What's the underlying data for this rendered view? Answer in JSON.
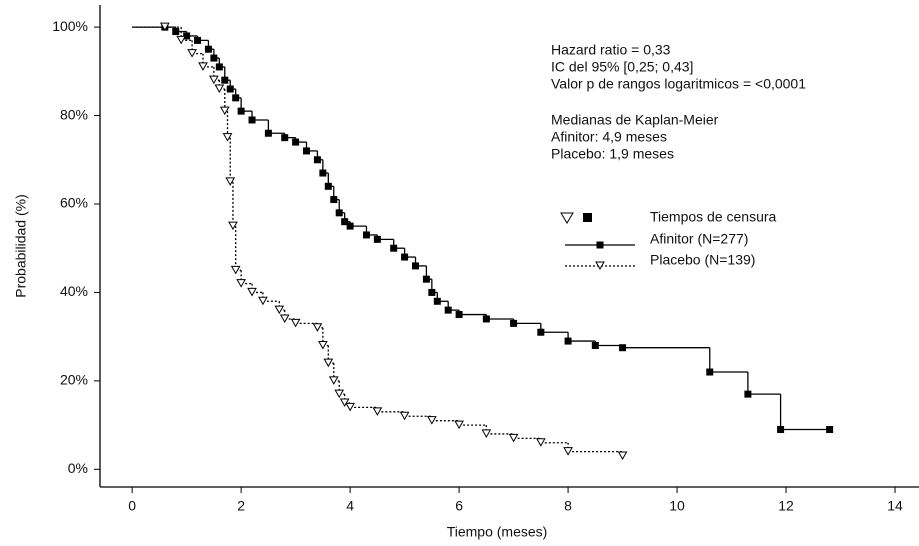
{
  "chart_data": {
    "type": "line",
    "step": true,
    "x_label": "Tiempo (meses)",
    "y_label": "Probabilidad (%)",
    "xlim": [
      -0.59,
      14.44
    ],
    "ylim": [
      -4,
      105
    ],
    "xticks": [
      0,
      2,
      4,
      6,
      8,
      10,
      12,
      14
    ],
    "yticks": [
      {
        "value": 0,
        "label": "0%"
      },
      {
        "value": 20,
        "label": "20%"
      },
      {
        "value": 40,
        "label": "40%"
      },
      {
        "value": 60,
        "label": "60%"
      },
      {
        "value": 80,
        "label": "80%"
      },
      {
        "value": 100,
        "label": "100%"
      }
    ],
    "annotations": [
      "Hazard ratio = 0,33",
      "IC del 95% [0,25; 0,43]",
      "Valor p de rangos logaritmicos = <0,0001",
      "Medianas de Kaplan-Meier",
      "Afinitor: 4,9 meses",
      "Placebo: 1,9 meses"
    ],
    "legend_title": "Tiempos de censura",
    "series": [
      {
        "name": "Afinitor (N=277)",
        "color": "#000000",
        "dash": false,
        "marker": "square",
        "x": [
          0,
          0.6,
          0.8,
          1,
          1.2,
          1.4,
          1.5,
          1.6,
          1.7,
          1.8,
          1.9,
          2,
          2.2,
          2.5,
          2.8,
          3,
          3.2,
          3.4,
          3.5,
          3.6,
          3.7,
          3.8,
          3.9,
          4,
          4.3,
          4.5,
          4.8,
          5,
          5.2,
          5.4,
          5.5,
          5.6,
          5.8,
          6,
          6.5,
          7,
          7.5,
          8,
          8.5,
          9,
          10.6,
          11.3,
          11.9,
          12.8
        ],
        "values": [
          100,
          100,
          99,
          98,
          97,
          95,
          93,
          91,
          88,
          86,
          84,
          81,
          79,
          76,
          75,
          74,
          72,
          70,
          67,
          64,
          61,
          58,
          56,
          55,
          53,
          52,
          50,
          48,
          46,
          43,
          40,
          38,
          36,
          35,
          34,
          33,
          31,
          29,
          28,
          27.5,
          22,
          17,
          9,
          9
        ]
      },
      {
        "name": "Placebo (N=139)",
        "color": "#000000",
        "dash": true,
        "marker": "triangle",
        "x": [
          0,
          0.6,
          0.9,
          1.1,
          1.3,
          1.5,
          1.6,
          1.7,
          1.75,
          1.8,
          1.85,
          1.9,
          2,
          2.2,
          2.4,
          2.7,
          2.8,
          3,
          3.4,
          3.5,
          3.6,
          3.7,
          3.8,
          3.9,
          4,
          4.5,
          5,
          5.5,
          6,
          6.5,
          7,
          7.5,
          8,
          9
        ],
        "values": [
          100,
          100,
          97,
          94,
          91,
          88,
          86,
          81,
          75,
          65,
          55,
          45,
          42,
          40,
          38,
          36,
          34,
          33,
          32,
          28,
          24,
          20,
          17,
          15,
          14,
          13,
          12,
          11,
          10,
          8,
          7,
          6,
          4,
          3
        ]
      }
    ]
  }
}
